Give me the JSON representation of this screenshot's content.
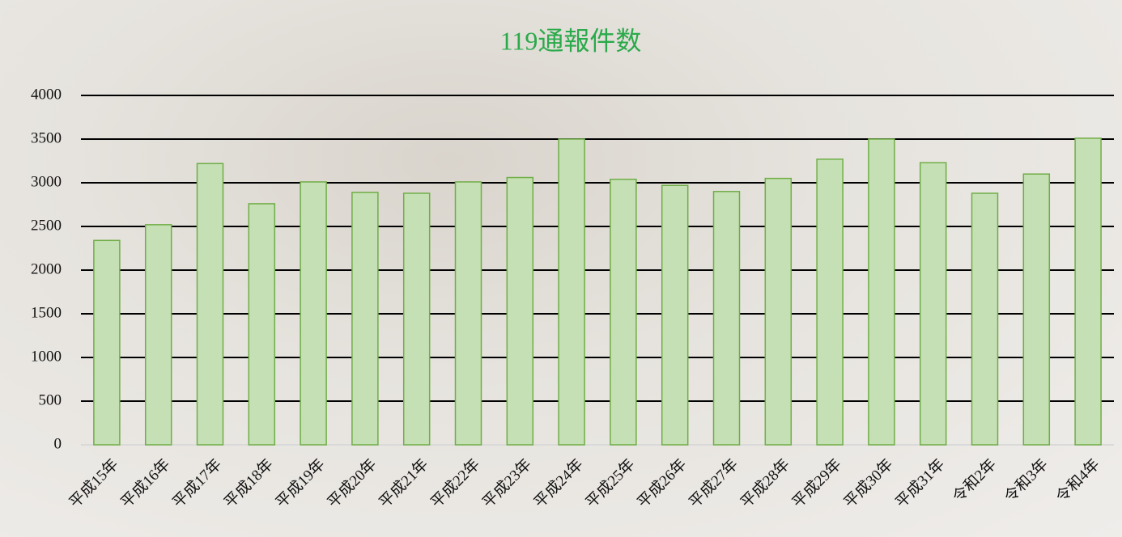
{
  "chart_data": {
    "type": "bar",
    "title": "119通報件数",
    "categories": [
      "平成15年",
      "平成16年",
      "平成17年",
      "平成18年",
      "平成19年",
      "平成20年",
      "平成21年",
      "平成22年",
      "平成23年",
      "平成24年",
      "平成25年",
      "平成26年",
      "平成27年",
      "平成28年",
      "平成29年",
      "平成30年",
      "平成31年",
      "令和2年",
      "令和3年",
      "令和4年"
    ],
    "values": [
      2340,
      2520,
      3220,
      2760,
      3010,
      2890,
      2880,
      3010,
      3060,
      3500,
      3040,
      2970,
      2900,
      3050,
      3270,
      3500,
      3230,
      2880,
      3100,
      3510
    ],
    "color": "#c5e0b4",
    "edge_color": "#70ad47",
    "ylim": [
      0,
      4000
    ],
    "yticks": [
      0,
      500,
      1000,
      1500,
      2000,
      2500,
      3000,
      3500,
      4000
    ],
    "grid": true
  }
}
